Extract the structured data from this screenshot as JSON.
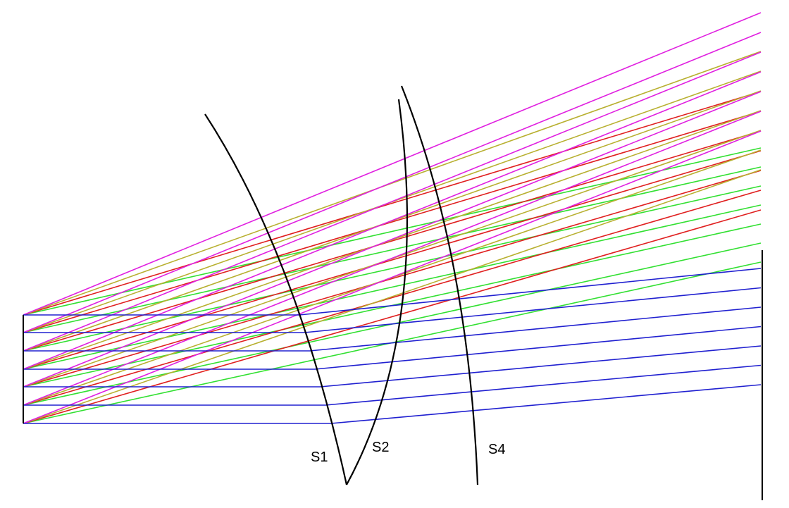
{
  "labels": {
    "s1": "S1",
    "s2": "S2",
    "s4": "S4"
  }
}
